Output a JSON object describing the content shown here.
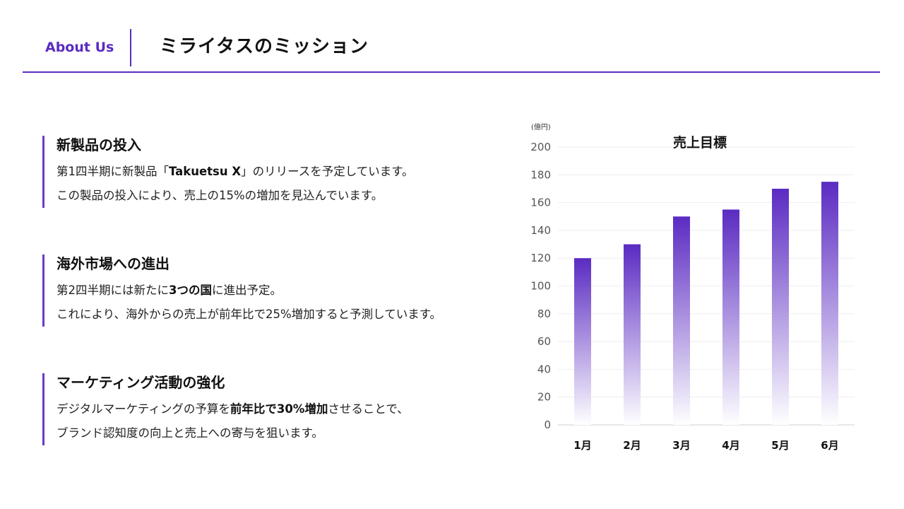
{
  "header": {
    "label": "About Us",
    "title": "ミライタスのミッション"
  },
  "sections": [
    {
      "title": "新製品の投入",
      "line1": [
        {
          "text": "第1四半期に新製品「",
          "bold": false
        },
        {
          "text": "Takuetsu X",
          "bold": true
        },
        {
          "text": "」のリリースを予定しています。",
          "bold": false
        }
      ],
      "line2": [
        {
          "text": "この製品の投入により、売上の15%の増加を見込んでいます。",
          "bold": false
        }
      ]
    },
    {
      "title": "海外市場への進出",
      "line1": [
        {
          "text": "第2四半期には新たに",
          "bold": false
        },
        {
          "text": "3つの国",
          "bold": true
        },
        {
          "text": "に進出予定。",
          "bold": false
        }
      ],
      "line2": [
        {
          "text": "これにより、海外からの売上が前年比で25%増加すると予測しています。",
          "bold": false
        }
      ]
    },
    {
      "title": "マーケティング活動の強化",
      "line1": [
        {
          "text": "デジタルマーケティングの予算を",
          "bold": false
        },
        {
          "text": "前年比で30%増加",
          "bold": true
        },
        {
          "text": "させることで、",
          "bold": false
        }
      ],
      "line2": [
        {
          "text": "ブランド認知度の向上と売上への寄与を狙います。",
          "bold": false
        }
      ]
    }
  ],
  "chart_data": {
    "type": "bar",
    "title": "売上目標",
    "unit_label": "(億円)",
    "categories": [
      "1月",
      "2月",
      "3月",
      "4月",
      "5月",
      "6月"
    ],
    "values": [
      120,
      130,
      150,
      155,
      170,
      175
    ],
    "ylim": [
      0,
      200
    ],
    "yticks": [
      0,
      20,
      40,
      60,
      80,
      100,
      120,
      140,
      160,
      180,
      200
    ],
    "grid": true,
    "bar_color_top": "#5b2bc2",
    "bar_color_bottom": "#ffffff"
  },
  "colors": {
    "accent": "#5b2bc2"
  }
}
